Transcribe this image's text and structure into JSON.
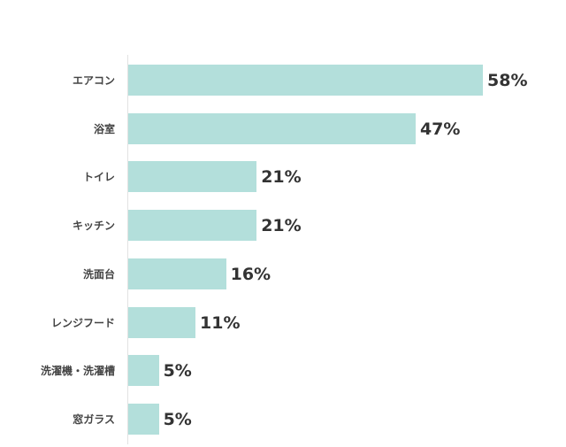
{
  "chart_data": {
    "type": "bar",
    "orientation": "horizontal",
    "title": "",
    "xlabel": "",
    "ylabel": "",
    "categories": [
      "エアコン",
      "浴室",
      "トイレ",
      "キッチン",
      "洗面台",
      "レンジフード",
      "洗濯機・洗濯槽",
      "窓ガラス"
    ],
    "values": [
      58,
      47,
      21,
      21,
      16,
      11,
      5,
      5
    ],
    "value_labels": [
      "58%",
      "47%",
      "21%",
      "21%",
      "16%",
      "11%",
      "5%",
      "5%"
    ],
    "unit": "%",
    "xlim": [
      0,
      58
    ],
    "grid": false,
    "legend": null,
    "bar_color": "#b3dfdb"
  }
}
